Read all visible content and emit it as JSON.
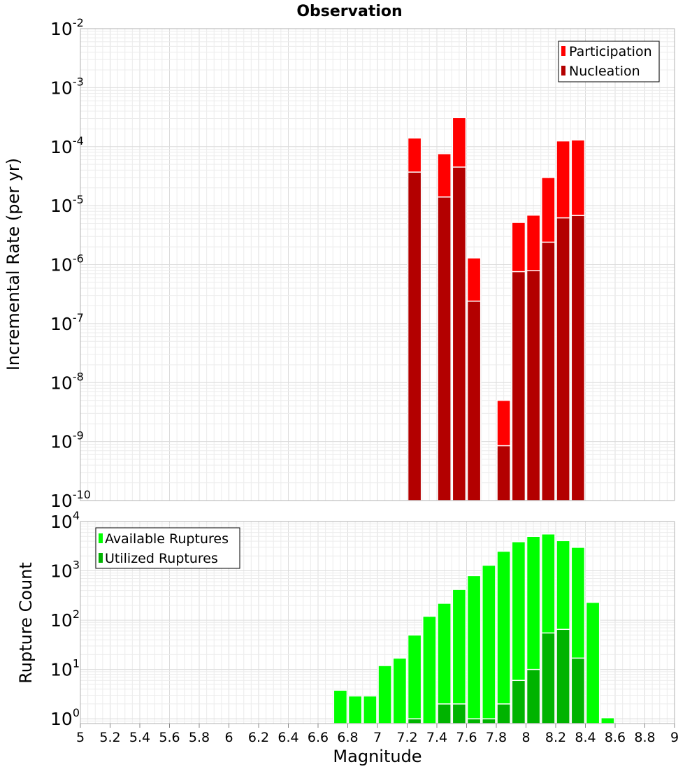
{
  "chart_data": [
    {
      "type": "bar",
      "title": "Observation",
      "xlabel": "",
      "ylabel": "Incremental Rate (per yr)",
      "yscale": "log",
      "ylim": [
        1e-10,
        0.01
      ],
      "xlim": [
        5,
        9
      ],
      "grid": true,
      "legend_position": "top-right",
      "bar_width": 0.09,
      "y_tick_labels": [
        "10-10",
        "10-9",
        "10-8",
        "10-7",
        "10-6",
        "10-5",
        "10-4",
        "10-3",
        "10-2"
      ],
      "series": [
        {
          "name": "Participation",
          "color": "#ff0000",
          "x": [
            7.25,
            7.45,
            7.55,
            7.65,
            7.85,
            7.95,
            8.05,
            8.15,
            8.25,
            8.35
          ],
          "values": [
            0.00014,
            7.6e-05,
            0.00031,
            1.3e-06,
            5e-09,
            5.2e-06,
            6.9e-06,
            3e-05,
            0.000125,
            0.00013
          ]
        },
        {
          "name": "Nucleation",
          "color": "#b30000",
          "x": [
            7.25,
            7.45,
            7.55,
            7.65,
            7.85,
            7.95,
            8.05,
            8.15,
            8.25,
            8.35
          ],
          "values": [
            3.7e-05,
            1.4e-05,
            4.5e-05,
            2.4e-07,
            8.5e-10,
            7.6e-07,
            7.9e-07,
            2.4e-06,
            6.2e-06,
            6.8e-06
          ]
        }
      ]
    },
    {
      "type": "bar",
      "title": "",
      "xlabel": "Magnitude",
      "ylabel": "Rupture Count",
      "yscale": "log",
      "ylim": [
        0.8,
        10000
      ],
      "xlim": [
        5,
        9
      ],
      "grid": true,
      "legend_position": "top-left",
      "bar_width": 0.09,
      "y_tick_labels": [
        "100",
        "101",
        "102",
        "103",
        "104"
      ],
      "x_tick_labels": [
        "5",
        "5.2",
        "5.4",
        "5.6",
        "5.8",
        "6",
        "6.2",
        "6.4",
        "6.6",
        "6.8",
        "7",
        "7.2",
        "7.4",
        "7.6",
        "7.8",
        "8",
        "8.2",
        "8.4",
        "8.6",
        "8.8",
        "9"
      ],
      "series": [
        {
          "name": "Available Ruptures",
          "color": "#00ff00",
          "x": [
            6.75,
            6.85,
            6.95,
            7.05,
            7.15,
            7.25,
            7.35,
            7.45,
            7.55,
            7.65,
            7.75,
            7.85,
            7.95,
            8.05,
            8.15,
            8.25,
            8.35,
            8.45,
            8.55
          ],
          "values": [
            3.8,
            2.9,
            2.9,
            12,
            17,
            50,
            120,
            220,
            420,
            800,
            1300,
            2500,
            3900,
            5000,
            5600,
            4100,
            3000,
            230,
            1.05
          ]
        },
        {
          "name": "Utilized Ruptures",
          "color": "#00b300",
          "x": [
            7.25,
            7.45,
            7.55,
            7.65,
            7.75,
            7.85,
            7.95,
            8.05,
            8.15,
            8.25,
            8.35
          ],
          "values": [
            1,
            2,
            2,
            1,
            1,
            2,
            6,
            10,
            55,
            65,
            17
          ]
        }
      ]
    }
  ]
}
